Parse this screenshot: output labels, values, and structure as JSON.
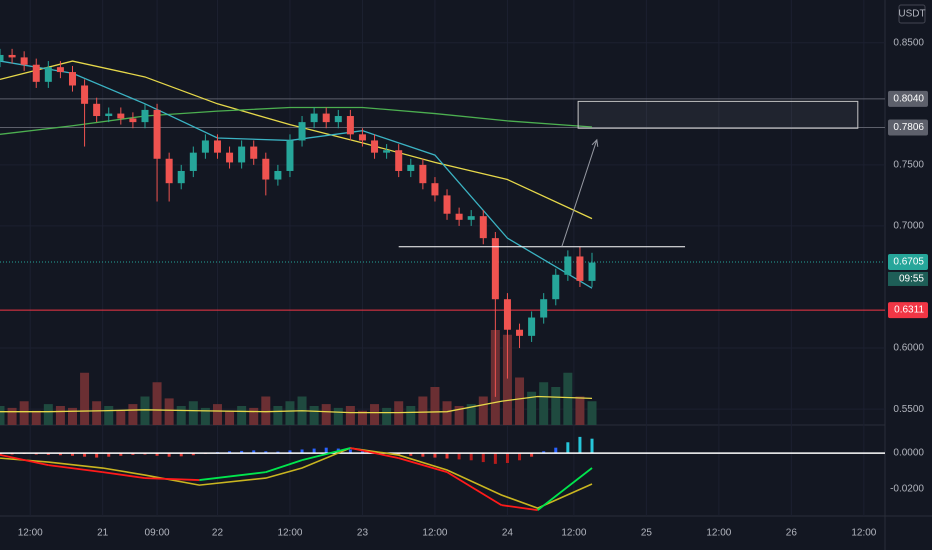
{
  "chart_data": {
    "type": "candlestick",
    "currency": "USDT",
    "countdown": "09:55",
    "xlim": [
      -84,
      62.5
    ],
    "ylim": [
      0.537,
      0.885
    ],
    "xticks": [
      {
        "value": -79,
        "label": "12:00"
      },
      {
        "value": -67,
        "label": "21"
      },
      {
        "value": -58,
        "label": "09:00"
      },
      {
        "value": -48,
        "label": "22"
      },
      {
        "value": -36,
        "label": "12:00"
      },
      {
        "value": -24,
        "label": "23"
      },
      {
        "value": -12,
        "label": "12:00"
      },
      {
        "value": 0,
        "label": "24"
      },
      {
        "value": 11,
        "label": "12:00"
      },
      {
        "value": 23,
        "label": "25"
      },
      {
        "value": 35,
        "label": "12:00"
      },
      {
        "value": 47,
        "label": "26"
      },
      {
        "value": 59,
        "label": "12:00"
      }
    ],
    "yticks": [
      {
        "value": 0.85,
        "label": "0.8500"
      },
      {
        "value": 0.75,
        "label": "0.7500"
      },
      {
        "value": 0.7,
        "label": "0.7000"
      },
      {
        "value": 0.6,
        "label": "0.6000"
      },
      {
        "value": 0.55,
        "label": "0.5500"
      }
    ],
    "candles": {
      "up_color": "#26a69a",
      "down_color": "#ef5350",
      "x": [
        -84,
        -82,
        -80,
        -78,
        -76,
        -74,
        -72,
        -70,
        -68,
        -66,
        -64,
        -62,
        -60,
        -58,
        -56,
        -54,
        -52,
        -50,
        -48,
        -46,
        -44,
        -42,
        -40,
        -38,
        -36,
        -34,
        -32,
        -30,
        -28,
        -26,
        -24,
        -22,
        -20,
        -18,
        -16,
        -14,
        -12,
        -10,
        -8,
        -6,
        -4,
        -2,
        0,
        2,
        4,
        6,
        8,
        10,
        12,
        14
      ],
      "open": [
        0.835,
        0.84,
        0.838,
        0.832,
        0.818,
        0.83,
        0.826,
        0.815,
        0.8,
        0.79,
        0.792,
        0.788,
        0.785,
        0.795,
        0.755,
        0.735,
        0.745,
        0.76,
        0.77,
        0.76,
        0.752,
        0.765,
        0.755,
        0.738,
        0.745,
        0.77,
        0.785,
        0.792,
        0.785,
        0.79,
        0.775,
        0.77,
        0.76,
        0.762,
        0.745,
        0.75,
        0.735,
        0.725,
        0.71,
        0.705,
        0.708,
        0.69,
        0.64,
        0.615,
        0.61,
        0.625,
        0.64,
        0.66,
        0.675,
        0.655
      ],
      "high": [
        0.845,
        0.845,
        0.843,
        0.837,
        0.835,
        0.835,
        0.831,
        0.82,
        0.805,
        0.797,
        0.797,
        0.793,
        0.8,
        0.8,
        0.76,
        0.75,
        0.765,
        0.775,
        0.775,
        0.765,
        0.77,
        0.77,
        0.76,
        0.75,
        0.775,
        0.79,
        0.797,
        0.797,
        0.795,
        0.795,
        0.78,
        0.775,
        0.767,
        0.767,
        0.755,
        0.755,
        0.74,
        0.73,
        0.715,
        0.713,
        0.713,
        0.695,
        0.645,
        0.62,
        0.63,
        0.645,
        0.665,
        0.68,
        0.683,
        0.678
      ],
      "low": [
        0.83,
        0.833,
        0.827,
        0.813,
        0.813,
        0.821,
        0.81,
        0.765,
        0.785,
        0.785,
        0.783,
        0.78,
        0.78,
        0.72,
        0.72,
        0.73,
        0.74,
        0.755,
        0.755,
        0.747,
        0.747,
        0.75,
        0.725,
        0.733,
        0.74,
        0.765,
        0.78,
        0.78,
        0.78,
        0.77,
        0.765,
        0.755,
        0.755,
        0.74,
        0.74,
        0.73,
        0.72,
        0.705,
        0.7,
        0.7,
        0.685,
        0.56,
        0.575,
        0.6,
        0.605,
        0.62,
        0.635,
        0.655,
        0.65,
        0.65
      ],
      "close": [
        0.84,
        0.838,
        0.832,
        0.818,
        0.83,
        0.826,
        0.815,
        0.8,
        0.79,
        0.792,
        0.788,
        0.785,
        0.795,
        0.755,
        0.735,
        0.745,
        0.76,
        0.77,
        0.76,
        0.752,
        0.765,
        0.755,
        0.738,
        0.745,
        0.77,
        0.785,
        0.792,
        0.785,
        0.79,
        0.775,
        0.77,
        0.76,
        0.762,
        0.745,
        0.75,
        0.735,
        0.725,
        0.71,
        0.705,
        0.708,
        0.69,
        0.64,
        0.615,
        0.61,
        0.625,
        0.64,
        0.66,
        0.675,
        0.655,
        0.67
      ],
      "volume": [
        20,
        18,
        25,
        15,
        22,
        20,
        18,
        55,
        25,
        20,
        15,
        22,
        30,
        45,
        28,
        20,
        25,
        18,
        22,
        15,
        20,
        18,
        30,
        20,
        25,
        30,
        20,
        22,
        18,
        20,
        15,
        22,
        18,
        25,
        20,
        30,
        40,
        25,
        20,
        22,
        30,
        100,
        95,
        50,
        35,
        45,
        40,
        55,
        30,
        25
      ]
    },
    "volume_lim": [
      0,
      100
    ],
    "volume_ma": {
      "color": "#e6d84a",
      "x": [
        -84,
        -76,
        -67,
        -60,
        -51,
        -40,
        -34,
        -26,
        -18,
        -10,
        -1,
        5,
        14
      ],
      "values": [
        14,
        14,
        15,
        16,
        15,
        14,
        15,
        13,
        13,
        14,
        25,
        30,
        28
      ]
    },
    "moving_averages": [
      {
        "color": "#e6d84a",
        "x": [
          -84,
          -72,
          -60,
          -48,
          -36,
          -24,
          -12,
          0,
          14
        ],
        "values": [
          0.82,
          0.835,
          0.822,
          0.8,
          0.783,
          0.768,
          0.752,
          0.738,
          0.706
        ]
      },
      {
        "color": "#4caf50",
        "x": [
          -84,
          -72,
          -60,
          -48,
          -36,
          -24,
          -12,
          0,
          14
        ],
        "values": [
          0.775,
          0.782,
          0.79,
          0.794,
          0.797,
          0.797,
          0.792,
          0.786,
          0.781
        ]
      },
      {
        "color": "#3bb3c3",
        "x": [
          -84,
          -72,
          -60,
          -48,
          -36,
          -24,
          -12,
          0,
          14
        ],
        "values": [
          0.835,
          0.825,
          0.8,
          0.772,
          0.77,
          0.778,
          0.758,
          0.69,
          0.649
        ]
      }
    ],
    "price_lines": [
      {
        "value": 0.804,
        "label": "0.8040",
        "color": "#5d606b"
      },
      {
        "value": 0.7806,
        "label": "0.7806",
        "color": "#5d606b"
      },
      {
        "value": 0.6705,
        "label": "0.6705",
        "color": "#26a69a"
      },
      {
        "value": 0.6311,
        "label": "0.6311",
        "color": "#f23645"
      }
    ],
    "level": {
      "x": [
        -18,
        29.4
      ],
      "value": 0.683,
      "color": "#ffffff"
    },
    "box": {
      "x": [
        11.7,
        58
      ],
      "y": [
        0.78,
        0.802
      ]
    },
    "arrow": {
      "x": [
        9,
        14.8
      ],
      "y": [
        0.683,
        0.7705
      ]
    },
    "oscillator": {
      "ylim": [
        -0.0344,
        0.0156
      ],
      "yticks": [
        {
          "value": 0,
          "label": "0.0000"
        },
        {
          "value": -0.02,
          "label": "-0.0200"
        }
      ],
      "histogram": [
        -0.001,
        -0.0008,
        -0.0005,
        -0.0008,
        -0.001,
        -0.0012,
        -0.0015,
        -0.002,
        -0.0025,
        -0.002,
        -0.0015,
        -0.001,
        -0.0008,
        -0.0015,
        -0.002,
        -0.0018,
        -0.0012,
        -0.0005,
        0.0005,
        0.001,
        0.0012,
        0.0015,
        0.001,
        0.0008,
        0.0015,
        0.002,
        0.0025,
        0.003,
        0.0025,
        0.002,
        0.001,
        0.0005,
        -0.0005,
        -0.001,
        -0.0015,
        -0.002,
        -0.0025,
        -0.003,
        -0.0035,
        -0.004,
        -0.005,
        -0.006,
        -0.0055,
        -0.004,
        -0.002,
        0.001,
        0.003,
        0.006,
        0.009,
        0.008
      ],
      "x": [
        -84,
        -76,
        -67,
        -60,
        -51,
        -40,
        -34,
        -26,
        -18,
        -10,
        -1,
        5,
        14
      ],
      "fast": [
        -0.001,
        -0.0067,
        -0.0106,
        -0.0139,
        -0.015,
        -0.0106,
        -0.0039,
        0.0028,
        -0.0028,
        -0.0106,
        -0.0289,
        -0.0317,
        -0.0083
      ],
      "slow": {
        "color": "#c9b520",
        "values": [
          -0.0028,
          -0.005,
          -0.0083,
          -0.0122,
          -0.0178,
          -0.0139,
          -0.0083,
          0.0028,
          -0.0011,
          -0.0094,
          -0.0233,
          -0.0306,
          -0.0172
        ]
      }
    }
  }
}
